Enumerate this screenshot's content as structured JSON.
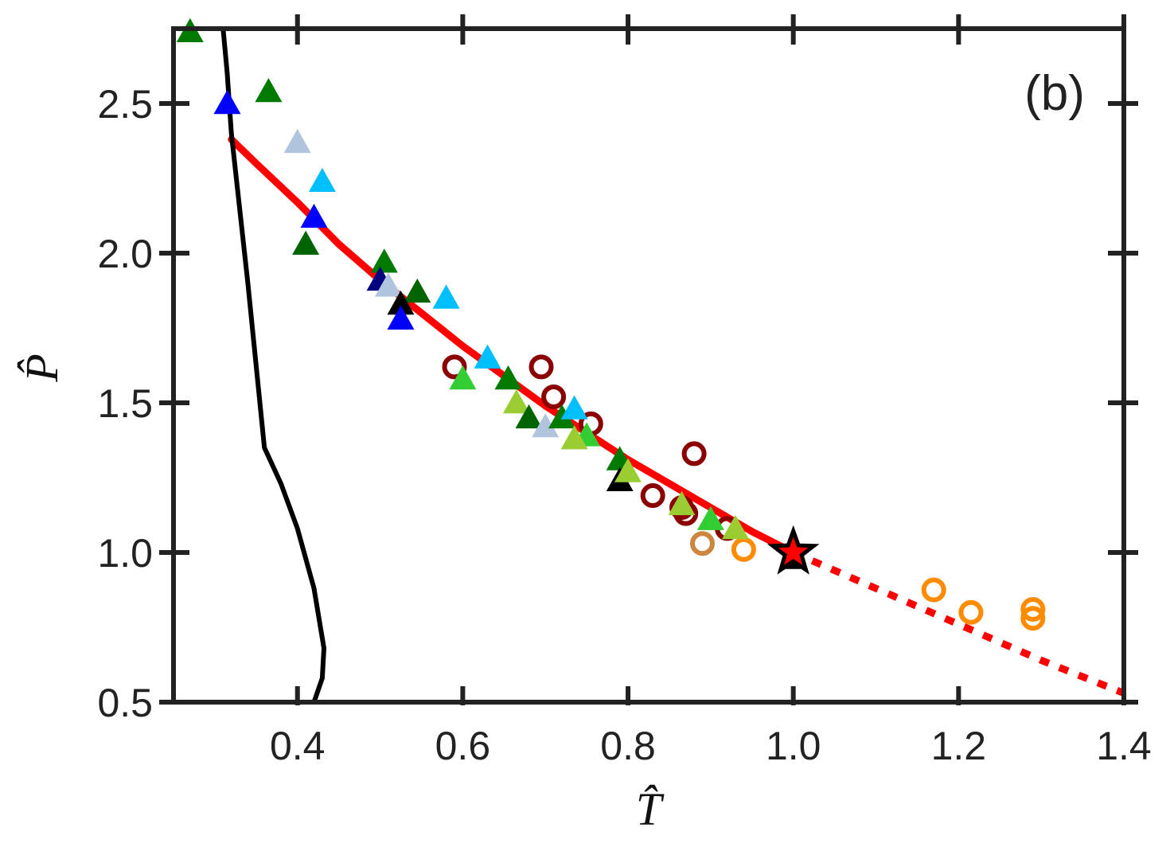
{
  "chart_data": {
    "type": "scatter",
    "title": "",
    "panel_label": "(b)",
    "xlabel": "T̂",
    "ylabel": "P̂",
    "xlim": [
      0.25,
      1.4
    ],
    "ylim": [
      0.5,
      2.75
    ],
    "xticks": [
      "0.4",
      "0.6",
      "0.8",
      "1.0",
      "1.2",
      "1.4"
    ],
    "yticks": [
      "0.5",
      "1.0",
      "1.5",
      "2.0",
      "2.5"
    ],
    "grid": false,
    "colors": {
      "axis": "#222222",
      "fit_curve": "#ff0000",
      "black_line": "#000000"
    },
    "lines": [
      {
        "style": "solid",
        "color": "#ff0000",
        "x": [
          0.32,
          0.35,
          0.4,
          0.45,
          0.5,
          0.55,
          0.6,
          0.65,
          0.7,
          0.75,
          0.8,
          0.85,
          0.9,
          0.95,
          1.0
        ],
        "y": [
          2.38,
          2.3,
          2.17,
          2.03,
          1.91,
          1.8,
          1.69,
          1.59,
          1.49,
          1.4,
          1.31,
          1.23,
          1.15,
          1.07,
          1.0
        ]
      },
      {
        "style": "dotted",
        "color": "#ff0000",
        "x": [
          1.0,
          1.1,
          1.2,
          1.3,
          1.4
        ],
        "y": [
          1.0,
          0.88,
          0.76,
          0.64,
          0.53
        ]
      },
      {
        "style": "solid",
        "color": "#000000",
        "x": [
          0.31,
          0.315,
          0.32,
          0.34,
          0.36,
          0.38,
          0.4,
          0.42,
          0.432,
          0.43,
          0.42
        ],
        "y": [
          2.75,
          2.6,
          2.4,
          1.9,
          1.35,
          1.23,
          1.08,
          0.88,
          0.68,
          0.58,
          0.5
        ]
      }
    ],
    "star": {
      "x": 1.0,
      "y": 1.0,
      "color": "#ff0000"
    },
    "triangles": [
      {
        "x": 0.27,
        "y": 2.74,
        "color": "#007a00"
      },
      {
        "x": 0.315,
        "y": 2.5,
        "color": "#0000ff"
      },
      {
        "x": 0.365,
        "y": 2.54,
        "color": "#007a00"
      },
      {
        "x": 0.4,
        "y": 2.37,
        "color": "#b0c4de"
      },
      {
        "x": 0.43,
        "y": 2.24,
        "color": "#00bfff"
      },
      {
        "x": 0.42,
        "y": 2.12,
        "color": "#0000ff"
      },
      {
        "x": 0.41,
        "y": 2.03,
        "color": "#006400"
      },
      {
        "x": 0.505,
        "y": 1.97,
        "color": "#007a00"
      },
      {
        "x": 0.5,
        "y": 1.91,
        "color": "#000080"
      },
      {
        "x": 0.51,
        "y": 1.89,
        "color": "#b0c4de"
      },
      {
        "x": 0.545,
        "y": 1.87,
        "color": "#006400"
      },
      {
        "x": 0.525,
        "y": 1.83,
        "color": "#000000"
      },
      {
        "x": 0.525,
        "y": 1.78,
        "color": "#0000ff"
      },
      {
        "x": 0.58,
        "y": 1.85,
        "color": "#00bfff"
      },
      {
        "x": 0.63,
        "y": 1.65,
        "color": "#00bfff"
      },
      {
        "x": 0.6,
        "y": 1.58,
        "color": "#32cd32"
      },
      {
        "x": 0.655,
        "y": 1.58,
        "color": "#007a00"
      },
      {
        "x": 0.665,
        "y": 1.5,
        "color": "#9acd32"
      },
      {
        "x": 0.68,
        "y": 1.45,
        "color": "#006400"
      },
      {
        "x": 0.7,
        "y": 1.42,
        "color": "#b0c4de"
      },
      {
        "x": 0.72,
        "y": 1.45,
        "color": "#007a00"
      },
      {
        "x": 0.735,
        "y": 1.48,
        "color": "#00bfff"
      },
      {
        "x": 0.75,
        "y": 1.39,
        "color": "#32cd32"
      },
      {
        "x": 0.735,
        "y": 1.38,
        "color": "#9acd32"
      },
      {
        "x": 0.79,
        "y": 1.31,
        "color": "#007a00"
      },
      {
        "x": 0.79,
        "y": 1.24,
        "color": "#000000"
      },
      {
        "x": 0.8,
        "y": 1.27,
        "color": "#9acd32"
      },
      {
        "x": 0.865,
        "y": 1.16,
        "color": "#9acd32"
      },
      {
        "x": 0.9,
        "y": 1.11,
        "color": "#32cd32"
      },
      {
        "x": 0.93,
        "y": 1.08,
        "color": "#9acd32"
      },
      {
        "x": 1.0,
        "y": 0.99,
        "color": "#00bfff"
      },
      {
        "x": 1.0,
        "y": 0.98,
        "color": "#000000"
      }
    ],
    "circles": [
      {
        "x": 0.59,
        "y": 1.62,
        "color": "#8b0000"
      },
      {
        "x": 0.695,
        "y": 1.62,
        "color": "#8b0000"
      },
      {
        "x": 0.71,
        "y": 1.52,
        "color": "#8b0000"
      },
      {
        "x": 0.755,
        "y": 1.43,
        "color": "#8b0000"
      },
      {
        "x": 0.88,
        "y": 1.33,
        "color": "#8b0000"
      },
      {
        "x": 0.83,
        "y": 1.19,
        "color": "#8b0000"
      },
      {
        "x": 0.865,
        "y": 1.15,
        "color": "#8b0000"
      },
      {
        "x": 0.87,
        "y": 1.13,
        "color": "#8b0000"
      },
      {
        "x": 0.92,
        "y": 1.08,
        "color": "#8b0000"
      },
      {
        "x": 0.89,
        "y": 1.03,
        "color": "#cd853f"
      },
      {
        "x": 0.94,
        "y": 1.01,
        "color": "#ff8c00"
      },
      {
        "x": 1.17,
        "y": 0.875,
        "color": "#ff8c00"
      },
      {
        "x": 1.215,
        "y": 0.8,
        "color": "#ff8c00"
      },
      {
        "x": 1.29,
        "y": 0.81,
        "color": "#ff8c00"
      },
      {
        "x": 1.29,
        "y": 0.78,
        "color": "#ff8c00"
      }
    ]
  }
}
